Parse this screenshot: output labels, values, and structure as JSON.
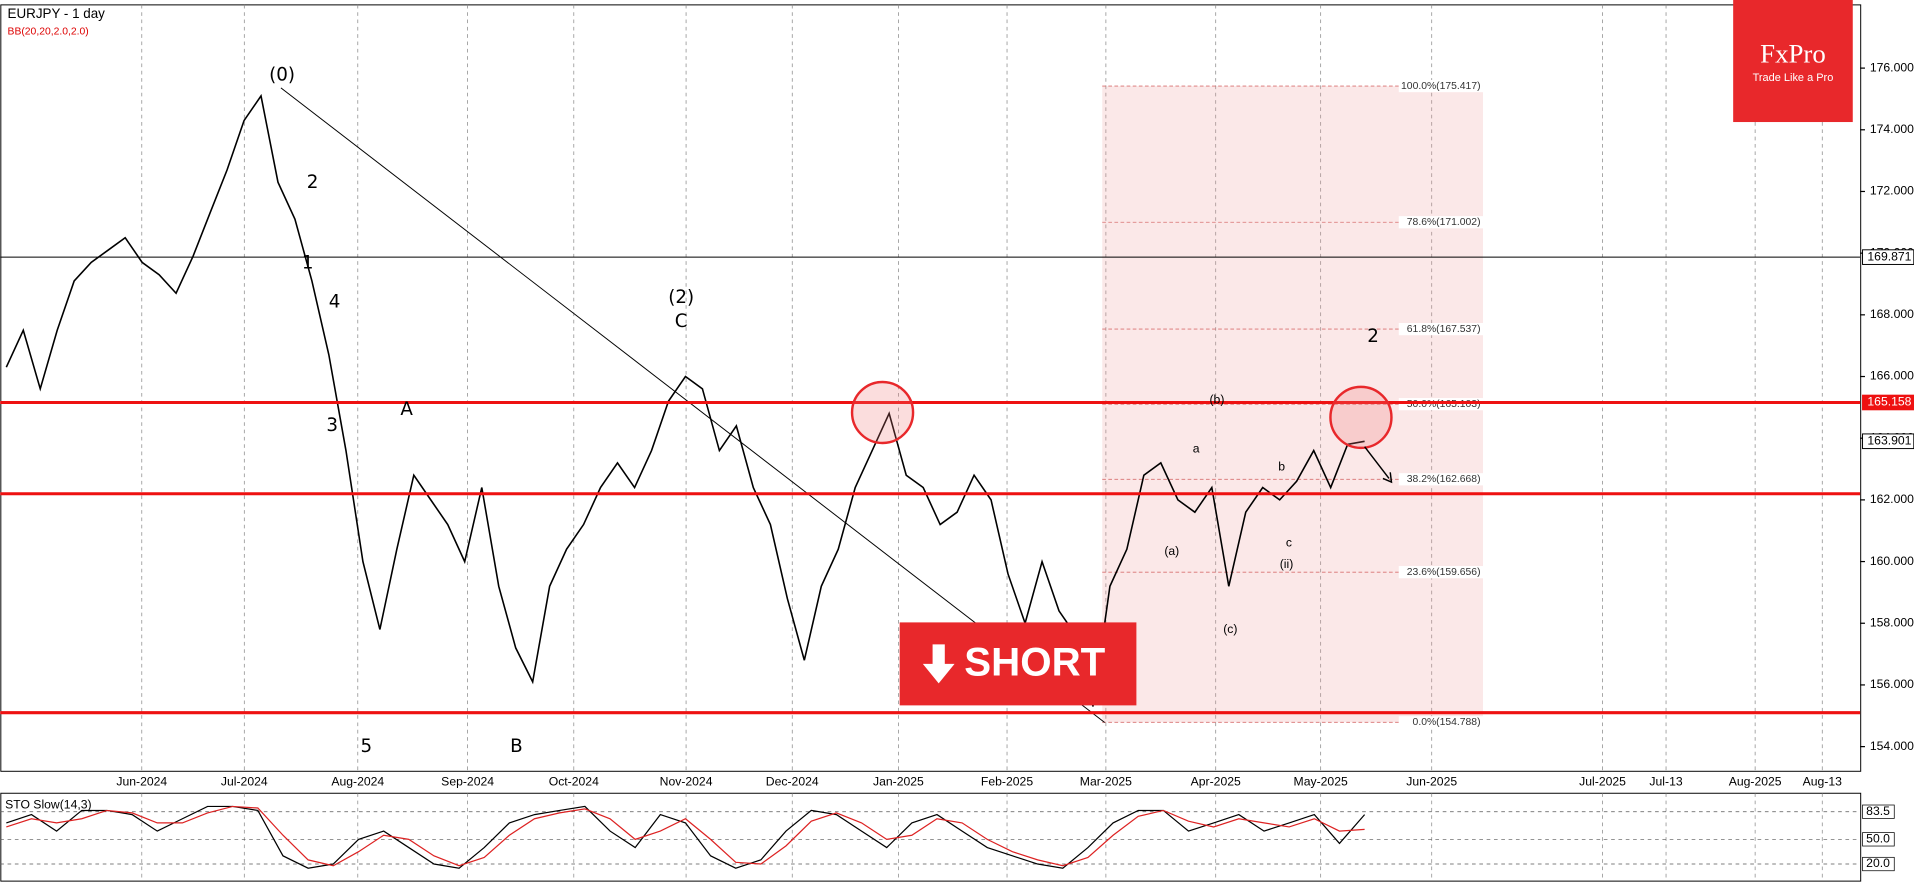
{
  "chart_data": [
    {
      "type": "line",
      "title": "EURJPY - 1 day",
      "subtitle": "BB(20,20,2.0,2.0)",
      "x_axis_labels": [
        "Jun-2024",
        "Jul-2024",
        "Aug-2024",
        "Sep-2024",
        "Oct-2024",
        "Nov-2024",
        "Dec-2024",
        "Jan-2025",
        "Feb-2025",
        "Mar-2025",
        "Apr-2025",
        "May-2025",
        "Jun-2025",
        "Jul-2025",
        "Jul-13",
        "Aug-2025",
        "Aug-13"
      ],
      "series": [
        {
          "color": "#000000",
          "values": [
            166.3,
            167.5,
            165.6,
            167.5,
            169.1,
            169.7,
            170.1,
            170.5,
            169.7,
            169.3,
            168.7,
            169.9,
            171.3,
            172.7,
            174.3,
            175.1,
            172.3,
            171.1,
            169.1,
            166.7,
            163.6,
            160.0,
            157.8,
            160.4,
            162.8,
            162.0,
            161.2,
            160.0,
            162.4,
            159.2,
            157.2,
            156.1,
            159.2,
            160.4,
            161.2,
            162.4,
            163.2,
            162.4,
            163.6,
            165.2,
            166.0,
            165.6,
            163.6,
            164.4,
            162.4,
            161.2,
            158.8,
            156.8,
            159.2,
            160.4,
            162.4,
            163.6,
            164.8,
            162.8,
            162.4,
            161.2,
            161.6,
            162.8,
            162.0,
            159.6,
            158.0,
            160.0,
            158.4,
            157.6,
            155.3,
            159.2,
            160.4,
            162.8,
            163.2,
            162.0,
            161.6,
            162.4,
            159.2,
            161.6,
            162.4,
            162.0,
            162.6,
            163.6,
            162.4,
            163.8,
            163.9
          ]
        }
      ],
      "ylim": [
        153.2,
        178.05
      ],
      "yticks": [
        {
          "value": 154,
          "label": "154.000"
        },
        {
          "value": 156,
          "label": "156.000"
        },
        {
          "value": 158,
          "label": "158.000"
        },
        {
          "value": 160,
          "label": "160.000"
        },
        {
          "value": 162,
          "label": "162.000"
        },
        {
          "value": 164,
          "label": "164.000"
        },
        {
          "value": 166,
          "label": "166.000"
        },
        {
          "value": 168,
          "label": "168.000"
        },
        {
          "value": 170,
          "label": "170.000"
        },
        {
          "value": 172,
          "label": "172.000"
        },
        {
          "value": 174,
          "label": "174.000"
        },
        {
          "value": 176,
          "label": "176.000"
        }
      ],
      "grid": true,
      "levels": [
        {
          "value": 169.871,
          "label": "169.871",
          "color": "#000000"
        },
        {
          "value": 165.158,
          "label": "165.158",
          "color": "#ee1111"
        },
        {
          "value": 162.2,
          "color": "#ee1111"
        },
        {
          "value": 155.1,
          "color": "#ee1111"
        }
      ],
      "price_label": {
        "value": 163.901,
        "label": "163.901"
      },
      "fibonacci": [
        {
          "value": 175.417,
          "label": "100.0%(175.417)"
        },
        {
          "value": 171.002,
          "label": "78.6%(171.002)"
        },
        {
          "value": 167.537,
          "label": "61.8%(167.537)"
        },
        {
          "value": 165.103,
          "label": "50.0%(165.103)"
        },
        {
          "value": 162.668,
          "label": "38.2%(162.668)"
        },
        {
          "value": 159.656,
          "label": "23.6%(159.656)"
        },
        {
          "value": 154.788,
          "label": "0.0%(154.788)"
        }
      ],
      "annotations": [
        "(0)",
        "2",
        "1",
        "4",
        "3",
        "5",
        "A",
        "B",
        "(2)",
        "C",
        "2",
        "(b)",
        "(c)",
        "(a)",
        "(ii)",
        "a",
        "b",
        "c"
      ],
      "signal": "SHORT"
    },
    {
      "type": "line",
      "title": "STO Slow(14,3)",
      "series": [
        {
          "color": "#000000",
          "values": [
            70,
            80,
            60,
            85,
            85,
            80,
            60,
            75,
            90,
            90,
            85,
            30,
            15,
            20,
            50,
            60,
            40,
            20,
            15,
            40,
            70,
            80,
            85,
            90,
            60,
            40,
            80,
            70,
            30,
            15,
            25,
            60,
            85,
            80,
            60,
            40,
            70,
            80,
            60,
            40,
            30,
            20,
            15,
            40,
            70,
            85,
            85,
            60,
            70,
            80,
            60,
            70,
            80,
            45,
            80
          ]
        },
        {
          "color": "#dd2222",
          "values": [
            65,
            75,
            70,
            75,
            85,
            82,
            70,
            70,
            82,
            90,
            88,
            55,
            25,
            18,
            35,
            55,
            50,
            30,
            18,
            28,
            55,
            75,
            82,
            87,
            75,
            50,
            60,
            75,
            50,
            22,
            20,
            42,
            72,
            82,
            70,
            50,
            55,
            75,
            70,
            50,
            35,
            25,
            18,
            28,
            55,
            78,
            85,
            72,
            65,
            75,
            70,
            65,
            75,
            60,
            62
          ]
        }
      ],
      "ylim": [
        0,
        100
      ],
      "yticks": [
        {
          "value": 20,
          "label": "20.0"
        },
        {
          "value": 50,
          "label": "50.0"
        },
        83.5
      ]
    }
  ],
  "logo": {
    "name": "FxPro",
    "tagline": "Trade Like a Pro"
  }
}
